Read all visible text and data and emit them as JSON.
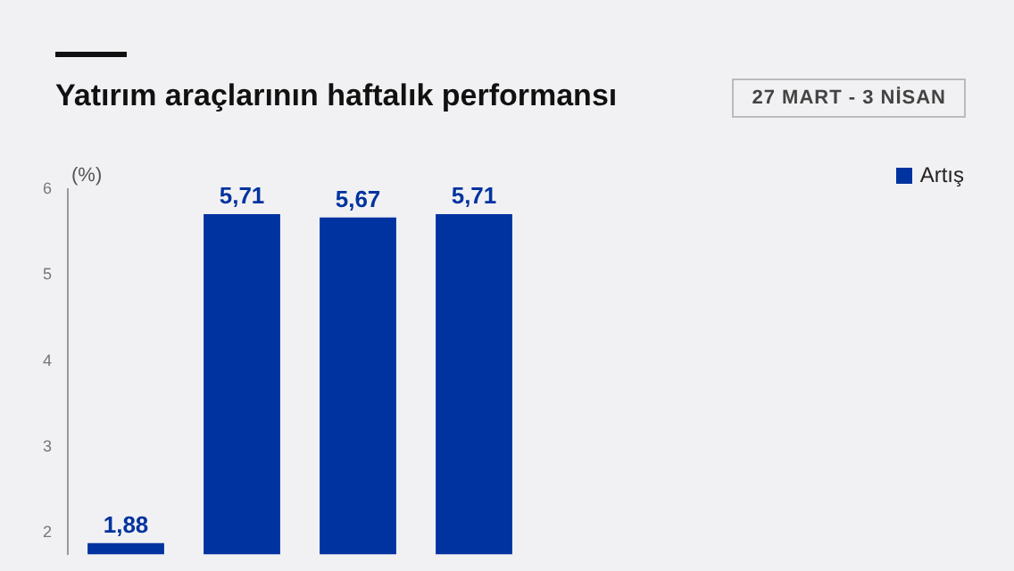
{
  "chart_data": {
    "type": "bar",
    "title": "Yatırım araçlarının haftalık performansı",
    "subtitle": "27 MART - 3 NİSAN",
    "ylabel": "(%)",
    "categories": [
      null,
      null,
      null,
      null
    ],
    "series": [
      {
        "name": "Artış",
        "color": "#0033a0",
        "values": [
          1.88,
          5.71,
          5.67,
          5.71
        ]
      }
    ],
    "value_labels": [
      "1,88",
      "5,71",
      "5,67",
      "5,71"
    ],
    "ylim": [
      1.75,
      6
    ],
    "yticks": [
      2,
      3,
      4,
      5,
      6
    ],
    "grid": false,
    "legend": "top right",
    "tick_labels": "y"
  }
}
